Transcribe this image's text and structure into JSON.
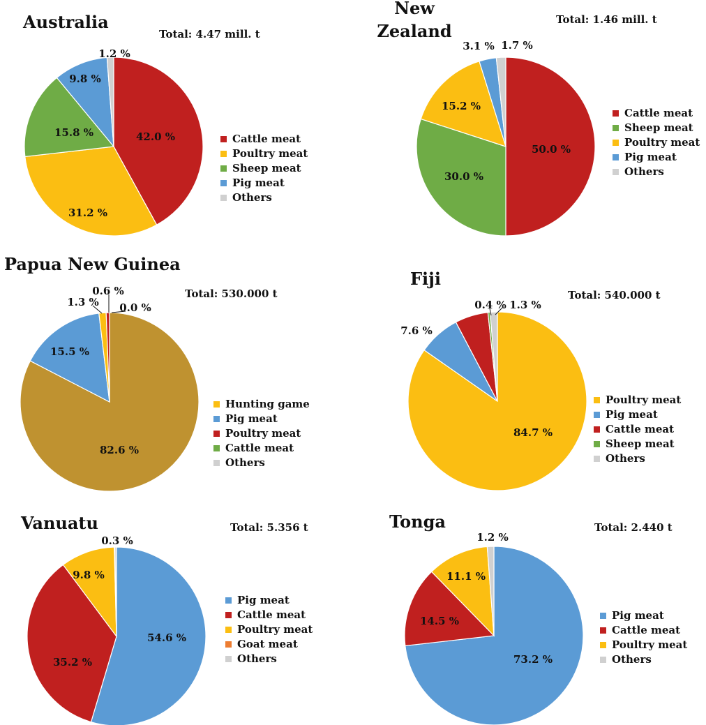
{
  "chart_data": [
    {
      "type": "pie",
      "title": "Australia",
      "total": "Total: 4.47 mill. t",
      "legend": [
        "Cattle meat",
        "Poultry meat",
        "Sheep meat",
        "Pig meat",
        "Others"
      ],
      "slices": [
        {
          "name": "Cattle meat",
          "value": 42.0,
          "label": "42.0 %",
          "color": "#C0201F"
        },
        {
          "name": "Poultry meat",
          "value": 31.2,
          "label": "31.2 %",
          "color": "#FBBE12"
        },
        {
          "name": "Sheep meat",
          "value": 15.8,
          "label": "15.8 %",
          "color": "#6FAC46"
        },
        {
          "name": "Pig meat",
          "value": 9.8,
          "label": "9.8 %",
          "color": "#5B9BD5"
        },
        {
          "name": "Others",
          "value": 1.2,
          "label": "1.2 %",
          "color": "#D0D0D0"
        }
      ]
    },
    {
      "type": "pie",
      "title": [
        "New",
        "Zealand"
      ],
      "total": "Total: 1.46 mill. t",
      "legend": [
        "Cattle meat",
        "Sheep meat",
        "Poultry meat",
        "Pig meat",
        "Others"
      ],
      "slices": [
        {
          "name": "Cattle meat",
          "value": 50.0,
          "label": "50.0 %",
          "color": "#C0201F"
        },
        {
          "name": "Sheep meat",
          "value": 30.0,
          "label": "30.0 %",
          "color": "#6FAC46"
        },
        {
          "name": "Poultry meat",
          "value": 15.2,
          "label": "15.2 %",
          "color": "#FBBE12"
        },
        {
          "name": "Pig meat",
          "value": 3.1,
          "label": "3.1 %",
          "color": "#5B9BD5"
        },
        {
          "name": "Others",
          "value": 1.7,
          "label": "1.7 %",
          "color": "#D0D0D0"
        }
      ]
    },
    {
      "type": "pie",
      "title": "Papua New Guinea",
      "total": "Total: 530.000 t",
      "legend": [
        "Hunting game",
        "Pig meat",
        "Poultry meat",
        "Cattle meat",
        "Others"
      ],
      "legend_colors": [
        "#FBBE12",
        "#5B9BD5",
        "#C0201F",
        "#6FAC46",
        "#D0D0D0"
      ],
      "slices": [
        {
          "name": "Hunting game",
          "value": 82.6,
          "label": "82.6 %",
          "color": "#BF9230"
        },
        {
          "name": "Pig meat",
          "value": 15.5,
          "label": "15.5 %",
          "color": "#5B9BD5"
        },
        {
          "name": "Poultry meat",
          "value": 1.3,
          "label": "1.3 %",
          "color": "#FBBE12"
        },
        {
          "name": "Cattle meat",
          "value": 0.6,
          "label": "0.6 %",
          "color": "#C0201F"
        },
        {
          "name": "Others",
          "value": 0.0,
          "label": "0.0 %",
          "color": "#D0D0D0"
        }
      ]
    },
    {
      "type": "pie",
      "title": "Fiji",
      "total": "Total: 540.000 t",
      "legend": [
        "Poultry meat",
        "Pig meat",
        "Cattle meat",
        "Sheep meat",
        "Others"
      ],
      "slices": [
        {
          "name": "Poultry meat",
          "value": 84.7,
          "label": "84.7 %",
          "color": "#FBBE12"
        },
        {
          "name": "Pig meat",
          "value": 7.6,
          "label": "7.6 %",
          "color": "#5B9BD5"
        },
        {
          "name": "Cattle meat",
          "value": 6.0,
          "label": "",
          "color": "#C0201F"
        },
        {
          "name": "Sheep meat",
          "value": 0.4,
          "label": "0.4 %",
          "color": "#6FAC46"
        },
        {
          "name": "Others",
          "value": 1.3,
          "label": "1.3 %",
          "color": "#D0D0D0"
        }
      ]
    },
    {
      "type": "pie",
      "title": "Vanuatu",
      "total": "Total: 5.356 t",
      "legend": [
        "Pig meat",
        "Cattle meat",
        "Poultry meat",
        "Goat meat",
        "Others"
      ],
      "legend_colors": [
        "#5B9BD5",
        "#C0201F",
        "#FBBE12",
        "#ED7D31",
        "#D0D0D0"
      ],
      "slices": [
        {
          "name": "Pig meat",
          "value": 54.6,
          "label": "54.6 %",
          "color": "#5B9BD5"
        },
        {
          "name": "Cattle meat",
          "value": 35.2,
          "label": "35.2 %",
          "color": "#C0201F"
        },
        {
          "name": "Poultry meat",
          "value": 9.8,
          "label": "9.8 %",
          "color": "#FBBE12"
        },
        {
          "name": "Goat meat",
          "value": 0.1,
          "label": "",
          "color": "#ED7D31"
        },
        {
          "name": "Others",
          "value": 0.3,
          "label": "0.3 %",
          "color": "#D0D0D0"
        }
      ]
    },
    {
      "type": "pie",
      "title": "Tonga",
      "total": "Total: 2.440 t",
      "legend": [
        "Pig meat",
        "Cattle meat",
        "Poultry meat",
        "Others"
      ],
      "slices": [
        {
          "name": "Pig meat",
          "value": 73.2,
          "label": "73.2 %",
          "color": "#5B9BD5"
        },
        {
          "name": "Cattle meat",
          "value": 14.5,
          "label": "14.5 %",
          "color": "#C0201F"
        },
        {
          "name": "Poultry meat",
          "value": 11.1,
          "label": "11.1 %",
          "color": "#FBBE12"
        },
        {
          "name": "Others",
          "value": 1.2,
          "label": "1.2 %",
          "color": "#D0D0D0"
        }
      ]
    }
  ]
}
